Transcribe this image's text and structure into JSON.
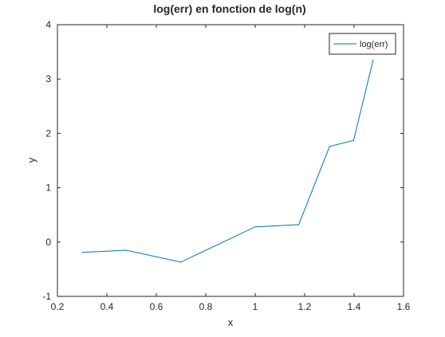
{
  "chart_data": {
    "type": "line",
    "title": "log(err) en fonction de log(n)",
    "xlabel": "x",
    "ylabel": "y",
    "xlim": [
      0.2,
      1.6
    ],
    "ylim": [
      -1,
      4
    ],
    "xticks": [
      0.2,
      0.4,
      0.6,
      0.8,
      1,
      1.2,
      1.4,
      1.6
    ],
    "yticks": [
      -1,
      0,
      1,
      2,
      3,
      4
    ],
    "xtick_labels": [
      "0.2",
      "0.4",
      "0.6",
      "0.8",
      "1",
      "1.2",
      "1.4",
      "1.6"
    ],
    "ytick_labels": [
      "-1",
      "0",
      "1",
      "2",
      "3",
      "4"
    ],
    "grid": false,
    "legend_position": "top-right",
    "series": [
      {
        "name": "log(err)",
        "color": "#0072bd",
        "x": [
          0.301,
          0.477,
          0.699,
          1.0,
          1.176,
          1.301,
          1.398,
          1.477
        ],
        "y": [
          -0.19,
          -0.15,
          -0.37,
          0.28,
          0.32,
          1.76,
          1.87,
          3.35
        ]
      }
    ]
  }
}
